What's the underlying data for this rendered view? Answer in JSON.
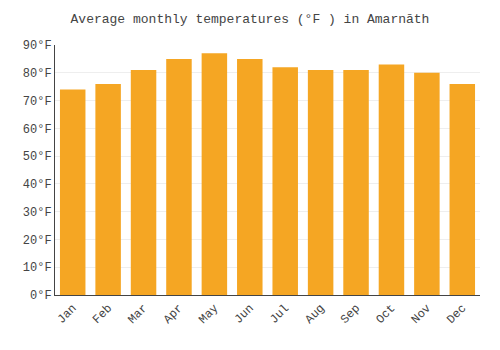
{
  "chart_data": {
    "type": "bar",
    "title": "Average monthly temperatures (°F ) in Amarnāth",
    "categories": [
      "Jan",
      "Feb",
      "Mar",
      "Apr",
      "May",
      "Jun",
      "Jul",
      "Aug",
      "Sep",
      "Oct",
      "Nov",
      "Dec"
    ],
    "values": [
      74,
      76,
      81,
      85,
      87,
      85,
      82,
      81,
      81,
      83,
      80,
      76
    ],
    "color": "#F5A623",
    "ylim": [
      0,
      90
    ],
    "yticks": [
      {
        "value": 0,
        "label": "0°F"
      },
      {
        "value": 10,
        "label": "10°F"
      },
      {
        "value": 20,
        "label": "20°F"
      },
      {
        "value": 30,
        "label": "30°F"
      },
      {
        "value": 40,
        "label": "40°F"
      },
      {
        "value": 50,
        "label": "50°F"
      },
      {
        "value": 60,
        "label": "60°F"
      },
      {
        "value": 70,
        "label": "70°F"
      },
      {
        "value": 80,
        "label": "80°F"
      },
      {
        "value": 90,
        "label": "90°F"
      }
    ],
    "grid": true
  }
}
